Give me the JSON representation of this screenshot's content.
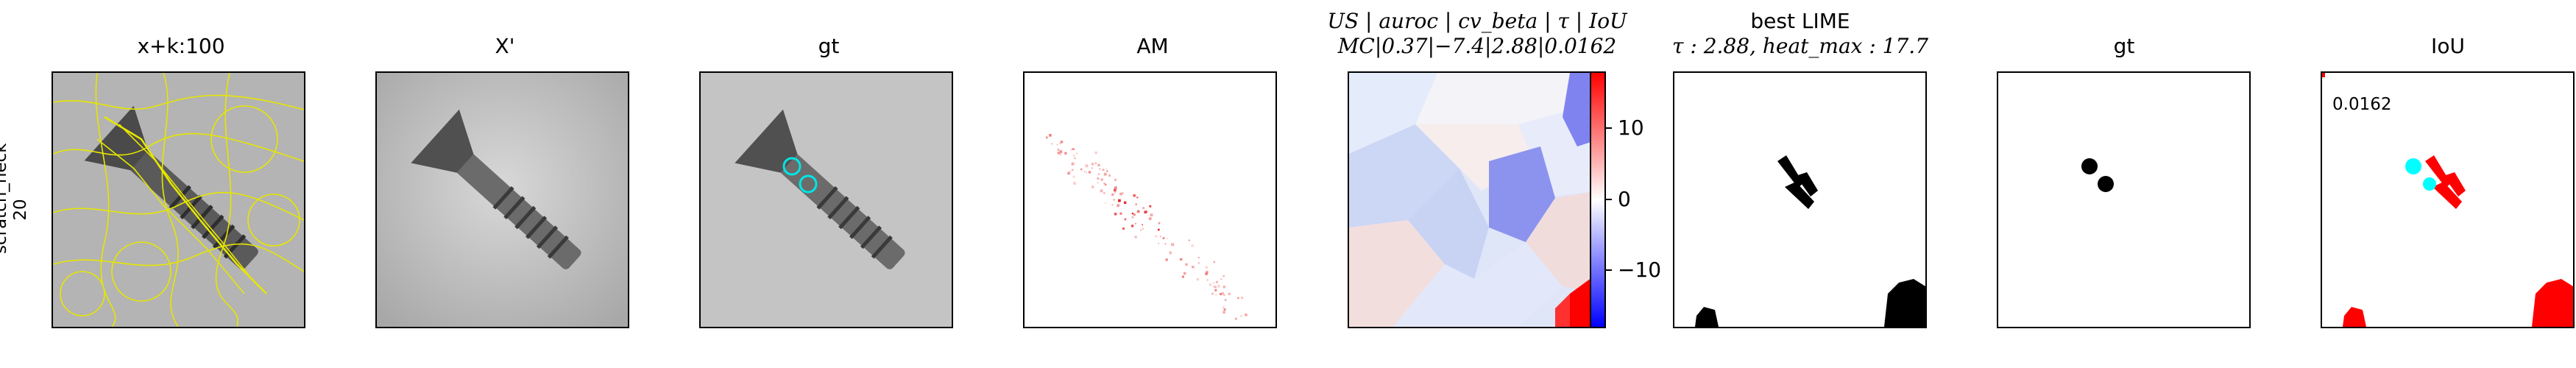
{
  "row_label": {
    "line1": "scratch_neck",
    "line2": "20"
  },
  "panels": [
    {
      "title": "x+k:100"
    },
    {
      "title": "X'"
    },
    {
      "title": "gt"
    },
    {
      "title": "AM"
    },
    {
      "title_line1": "US | auroc | cv_beta | τ | IoU",
      "title_line2": "MC|0.37|−7.4|2.88|0.0162"
    },
    {
      "title_line1": "best LIME",
      "title_line2": "τ : 2.88, heat_max : 17.7"
    },
    {
      "title": "gt"
    },
    {
      "title": "IoU"
    }
  ],
  "iou_value": "0.0162",
  "colorbar": {
    "ticks": [
      "10",
      "0",
      "−10"
    ],
    "colors": [
      "#ff0000",
      "#ffffff",
      "#0000ff"
    ]
  }
}
